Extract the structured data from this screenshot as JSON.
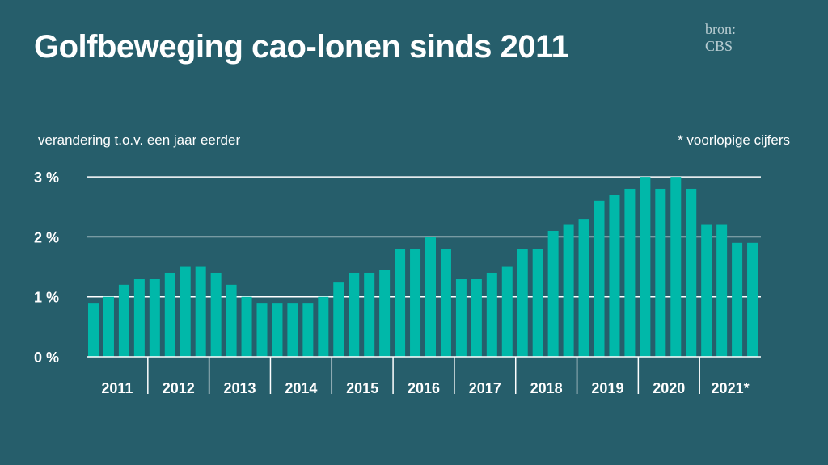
{
  "title": "Golfbeweging cao-lonen sinds 2011",
  "source": {
    "line1": "bron:",
    "line2": "CBS"
  },
  "colors": {
    "background": "#265e6b",
    "bars": "#00b8a9",
    "grid": "#ffffff"
  },
  "chart_data": {
    "type": "bar",
    "title": "Golfbeweging cao-lonen sinds 2011",
    "ylabel": "verandering t.o.v. een jaar eerder",
    "note": "* voorlopige cijfers",
    "ylim": [
      0,
      3
    ],
    "yticks": [
      {
        "v": 0,
        "label": "0 %"
      },
      {
        "v": 1,
        "label": "1 %"
      },
      {
        "v": 2,
        "label": "2 %"
      },
      {
        "v": 3,
        "label": "3 %"
      }
    ],
    "grid": true,
    "years": [
      "2011",
      "2012",
      "2013",
      "2014",
      "2015",
      "2016",
      "2017",
      "2018",
      "2019",
      "2020",
      "2021*"
    ],
    "values": [
      0.9,
      1.0,
      1.2,
      1.3,
      1.3,
      1.4,
      1.5,
      1.5,
      1.4,
      1.2,
      1.0,
      0.9,
      0.9,
      0.9,
      0.9,
      1.0,
      1.25,
      1.4,
      1.4,
      1.45,
      1.8,
      1.8,
      2.0,
      1.8,
      1.3,
      1.3,
      1.4,
      1.5,
      1.8,
      1.8,
      2.1,
      2.2,
      2.3,
      2.6,
      2.7,
      2.8,
      3.0,
      2.8,
      3.0,
      2.8,
      2.2,
      2.2,
      1.9,
      1.9
    ]
  }
}
